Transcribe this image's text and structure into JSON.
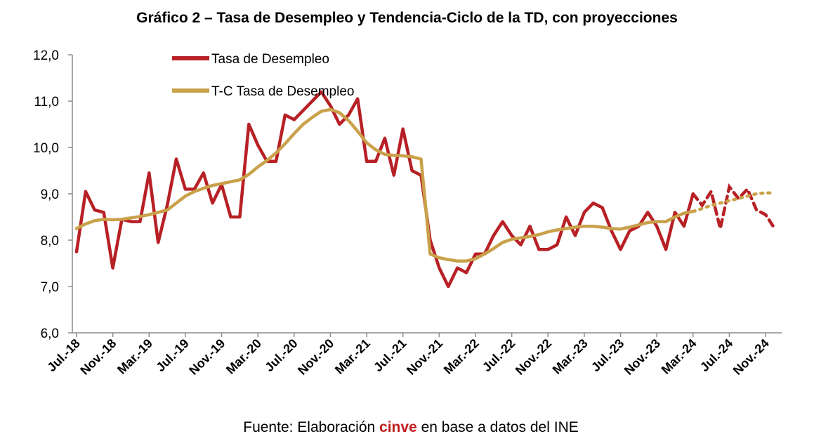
{
  "chart_data": {
    "type": "line",
    "title": "Gráfico 2 – Tasa de Desempleo y Tendencia-Ciclo de la TD, con proyecciones",
    "y_ticks": [
      "12,0",
      "11,0",
      "10,0",
      "9,0",
      "8,0",
      "7,0",
      "6,0"
    ],
    "ylim": [
      6,
      12
    ],
    "x_tick_labels": [
      "Jul.-18",
      "Nov.-18",
      "Mar.-19",
      "Jul.-19",
      "Nov.-19",
      "Mar.-20",
      "Jul.-20",
      "Nov.-20",
      "Mar.-21",
      "Jul.-21",
      "Nov.-21",
      "Mar.-22",
      "Jul.-22",
      "Nov.-22",
      "Mar.-23",
      "Jul.-23",
      "Nov.-23",
      "Mar.-24",
      "Jul.-24",
      "Nov.-24"
    ],
    "grid": false,
    "legend_position": "top-left",
    "series": [
      {
        "name": "Tasa de Desempleo",
        "color": "#b72025",
        "values": [
          7.75,
          9.05,
          8.65,
          8.6,
          7.4,
          8.45,
          8.4,
          8.4,
          9.45,
          7.95,
          8.75,
          9.75,
          9.1,
          9.1,
          9.45,
          8.8,
          9.2,
          8.5,
          8.5,
          10.5,
          10.05,
          9.7,
          9.7,
          10.7,
          10.6,
          10.8,
          11.0,
          11.2,
          10.9,
          10.5,
          10.7,
          11.05,
          9.7,
          9.7,
          10.2,
          9.4,
          10.4,
          9.5,
          9.4,
          8.0,
          7.4,
          7.0,
          7.4,
          7.3,
          7.7,
          7.7,
          8.1,
          8.4,
          8.1,
          7.9,
          8.3,
          7.8,
          7.8,
          7.9,
          8.5,
          8.1,
          8.6,
          8.8,
          8.7,
          8.2,
          7.8,
          8.2,
          8.3,
          8.6,
          8.3,
          7.8,
          8.6,
          8.3,
          9.0
        ],
        "projection_values": [
          8.75,
          9.05,
          8.25,
          9.15,
          8.9,
          9.1,
          8.65,
          8.55,
          8.25
        ]
      },
      {
        "name": "T-C Tasa de Desempleo",
        "color": "#c9a14a",
        "values": [
          8.25,
          8.35,
          8.42,
          8.45,
          8.44,
          8.45,
          8.48,
          8.51,
          8.55,
          8.6,
          8.65,
          8.8,
          8.95,
          9.05,
          9.12,
          9.18,
          9.22,
          9.26,
          9.3,
          9.42,
          9.58,
          9.72,
          9.88,
          10.08,
          10.3,
          10.5,
          10.65,
          10.78,
          10.82,
          10.75,
          10.58,
          10.35,
          10.1,
          9.95,
          9.85,
          9.83,
          9.82,
          9.8,
          9.75,
          7.7,
          7.62,
          7.58,
          7.55,
          7.55,
          7.6,
          7.7,
          7.82,
          7.95,
          8.02,
          8.05,
          8.08,
          8.12,
          8.18,
          8.22,
          8.25,
          8.28,
          8.3,
          8.3,
          8.28,
          8.25,
          8.24,
          8.28,
          8.33,
          8.38,
          8.4,
          8.4,
          8.5,
          8.58,
          8.62
        ],
        "projection_values": [
          8.68,
          8.75,
          8.8,
          8.85,
          8.9,
          8.95,
          9.0,
          9.02,
          9.02
        ]
      }
    ]
  },
  "footer": {
    "source_prefix": "Fuente: Elaboración ",
    "source_highlight": "cinve",
    "source_suffix": " en base a datos del INE"
  }
}
